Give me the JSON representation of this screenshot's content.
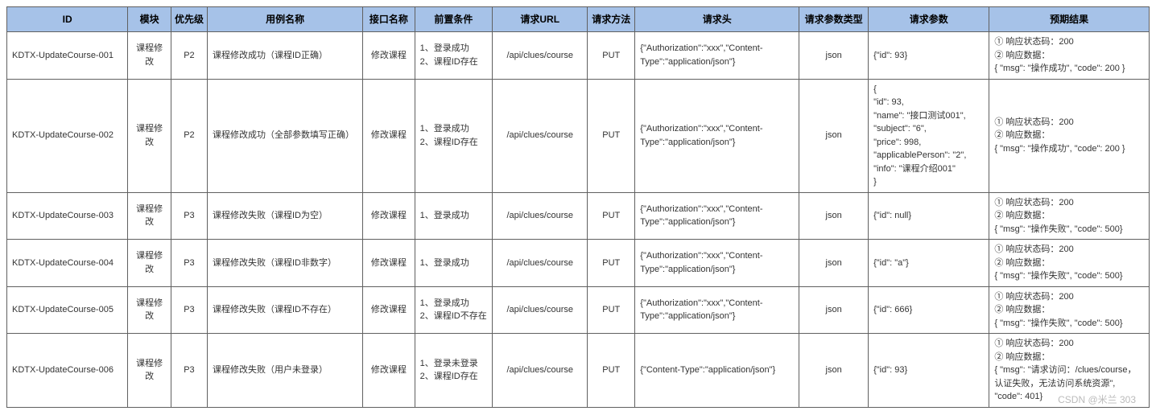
{
  "headers": {
    "id": "ID",
    "module": "模块",
    "priority": "优先级",
    "name": "用例名称",
    "api": "接口名称",
    "pre": "前置条件",
    "url": "请求URL",
    "method": "请求方法",
    "hdr": "请求头",
    "ptype": "请求参数类型",
    "params": "请求参数",
    "expect": "预期结果"
  },
  "style": {
    "header_bg": "#a6c2e8",
    "border_color": "#606060",
    "font_size": 11,
    "header_font_size": 12,
    "text_color": "#333333"
  },
  "rows": [
    {
      "id": "KDTX-UpdateCourse-001",
      "module": "课程修改",
      "priority": "P2",
      "name": "课程修改成功（课程ID正确）",
      "api": "修改课程",
      "pre": "1、登录成功\n2、课程ID存在",
      "url": "/api/clues/course",
      "method": "PUT",
      "hdr": "{\"Authorization\":\"xxx\",\"Content-Type\":\"application/json\"}",
      "ptype": "json",
      "params": "{\"id\": 93}",
      "expect": "① 响应状态码：200\n② 响应数据：\n{ \"msg\": \"操作成功\", \"code\": 200 }"
    },
    {
      "id": "KDTX-UpdateCourse-002",
      "module": "课程修改",
      "priority": "P2",
      "name": "课程修改成功（全部参数填写正确）",
      "api": "修改课程",
      "pre": "1、登录成功\n2、课程ID存在",
      "url": "/api/clues/course",
      "method": "PUT",
      "hdr": "{\"Authorization\":\"xxx\",\"Content-Type\":\"application/json\"}",
      "ptype": "json",
      "params": "{\n  \"id\": 93,\n  \"name\": \"接口测试001\",\n  \"subject\": \"6\",\n  \"price\": 998,\n  \"applicablePerson\": \"2\",\n  \"info\": \"课程介绍001\"\n}",
      "expect": "① 响应状态码：200\n② 响应数据：\n{ \"msg\": \"操作成功\", \"code\": 200 }"
    },
    {
      "id": "KDTX-UpdateCourse-003",
      "module": "课程修改",
      "priority": "P3",
      "name": "课程修改失败（课程ID为空）",
      "api": "修改课程",
      "pre": "1、登录成功",
      "url": "/api/clues/course",
      "method": "PUT",
      "hdr": "{\"Authorization\":\"xxx\",\"Content-Type\":\"application/json\"}",
      "ptype": "json",
      "params": "{\"id\": null}",
      "expect": "① 响应状态码：200\n② 响应数据：\n{ \"msg\": \"操作失败\", \"code\": 500}"
    },
    {
      "id": "KDTX-UpdateCourse-004",
      "module": "课程修改",
      "priority": "P3",
      "name": "课程修改失败（课程ID非数字）",
      "api": "修改课程",
      "pre": "1、登录成功",
      "url": "/api/clues/course",
      "method": "PUT",
      "hdr": "{\"Authorization\":\"xxx\",\"Content-Type\":\"application/json\"}",
      "ptype": "json",
      "params": "{\"id\": \"a\"}",
      "expect": "① 响应状态码：200\n② 响应数据：\n{ \"msg\": \"操作失败\", \"code\": 500}"
    },
    {
      "id": "KDTX-UpdateCourse-005",
      "module": "课程修改",
      "priority": "P3",
      "name": "课程修改失败（课程ID不存在）",
      "api": "修改课程",
      "pre": "1、登录成功\n2、课程ID不存在",
      "url": "/api/clues/course",
      "method": "PUT",
      "hdr": "{\"Authorization\":\"xxx\",\"Content-Type\":\"application/json\"}",
      "ptype": "json",
      "params": "{\"id\": 666}",
      "expect": "① 响应状态码：200\n② 响应数据：\n{ \"msg\": \"操作失败\", \"code\": 500}"
    },
    {
      "id": "KDTX-UpdateCourse-006",
      "module": "课程修改",
      "priority": "P3",
      "name": "课程修改失败（用户未登录）",
      "api": "修改课程",
      "pre": "1、登录未登录\n2、课程ID存在",
      "url": "/api/clues/course",
      "method": "PUT",
      "hdr": "{\"Content-Type\":\"application/json\"}",
      "ptype": "json",
      "params": "{\"id\": 93}",
      "expect": "① 响应状态码：200\n② 响应数据：\n{ \"msg\": \"请求访问：/clues/course，认证失败，无法访问系统资源\", \"code\": 401}"
    }
  ],
  "watermark": "CSDN @米兰 303"
}
